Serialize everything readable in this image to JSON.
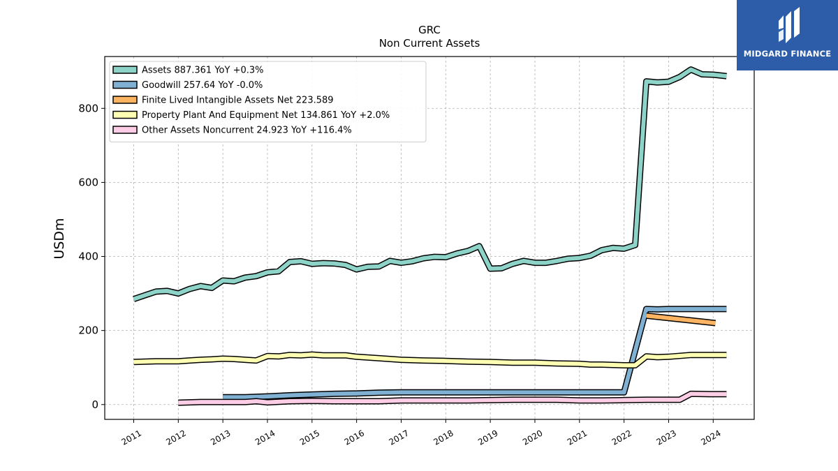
{
  "chart_data": {
    "type": "line",
    "title": "GRC",
    "subtitle": "Non Current  Assets",
    "ylabel": "USDm",
    "xlabel": "",
    "ylim": [
      -40,
      940
    ],
    "xlim": [
      2010.35,
      2024.92
    ],
    "yticks": [
      0,
      200,
      400,
      600,
      800
    ],
    "xticks": [
      "2011",
      "2012",
      "2013",
      "2014",
      "2015",
      "2016",
      "2017",
      "2018",
      "2019",
      "2020",
      "2021",
      "2022",
      "2023",
      "2024"
    ],
    "grid": true,
    "legend_position": "top-left",
    "series": [
      {
        "name": "Assets  887.361 YoY +0.3%",
        "color": "#8dd3c7",
        "x": [
          2011.0,
          2011.25,
          2011.5,
          2011.75,
          2012.0,
          2012.25,
          2012.5,
          2012.75,
          2013.0,
          2013.25,
          2013.5,
          2013.75,
          2014.0,
          2014.25,
          2014.5,
          2014.75,
          2015.0,
          2015.25,
          2015.5,
          2015.75,
          2016.0,
          2016.25,
          2016.5,
          2016.75,
          2017.0,
          2017.25,
          2017.5,
          2017.75,
          2018.0,
          2018.25,
          2018.5,
          2018.75,
          2019.0,
          2019.25,
          2019.5,
          2019.75,
          2020.0,
          2020.25,
          2020.5,
          2020.75,
          2021.0,
          2021.25,
          2021.5,
          2021.75,
          2022.0,
          2022.25,
          2022.5,
          2022.75,
          2023.0,
          2023.25,
          2023.5,
          2023.75,
          2024.0,
          2024.3
        ],
        "y": [
          285,
          295,
          305,
          307,
          300,
          312,
          320,
          315,
          335,
          333,
          343,
          347,
          357,
          360,
          385,
          387,
          380,
          382,
          381,
          377,
          365,
          372,
          373,
          388,
          383,
          387,
          395,
          399,
          398,
          408,
          415,
          428,
          367,
          368,
          380,
          388,
          383,
          383,
          388,
          394,
          396,
          402,
          417,
          423,
          421,
          431,
          873,
          870,
          872,
          885,
          905,
          892,
          891,
          887
        ]
      },
      {
        "name": "Goodwill  257.64 YoY -0.0%",
        "color": "#80b1d3",
        "x": [
          2013.0,
          2013.5,
          2014.0,
          2014.5,
          2015.0,
          2015.5,
          2016.0,
          2016.5,
          2017.0,
          2017.5,
          2018.0,
          2018.5,
          2019.0,
          2019.5,
          2020.0,
          2020.5,
          2021.0,
          2021.5,
          2022.0,
          2022.5,
          2022.75,
          2023.0,
          2023.5,
          2024.0,
          2024.3
        ],
        "y": [
          20,
          20,
          22,
          25,
          27,
          29,
          30,
          32,
          33,
          33,
          33,
          33,
          33,
          33,
          33,
          33,
          33,
          33,
          33,
          258,
          257,
          258,
          258,
          258,
          258
        ]
      },
      {
        "name": "Finite Lived Intangible Assets Net  223.589",
        "color": "#fdb462",
        "x": [
          2022.5,
          2024.05
        ],
        "y": [
          240,
          220
        ]
      },
      {
        "name": "Property Plant And Equipment Net  134.861 YoY +2.0%",
        "color": "#ffffb3",
        "x": [
          2011.0,
          2011.5,
          2012.0,
          2012.25,
          2012.5,
          2012.75,
          2013.0,
          2013.25,
          2013.5,
          2013.75,
          2014.0,
          2014.25,
          2014.5,
          2014.75,
          2015.0,
          2015.25,
          2015.5,
          2015.75,
          2016.0,
          2016.5,
          2017.0,
          2017.5,
          2018.0,
          2018.5,
          2019.0,
          2019.5,
          2020.0,
          2020.5,
          2021.0,
          2021.25,
          2021.5,
          2021.75,
          2022.0,
          2022.25,
          2022.5,
          2022.75,
          2023.0,
          2023.5,
          2024.0,
          2024.3
        ],
        "y": [
          115,
          117,
          117,
          119,
          121,
          122,
          124,
          123,
          121,
          119,
          131,
          130,
          134,
          133,
          135,
          133,
          133,
          133,
          129,
          125,
          121,
          119,
          118,
          116,
          115,
          113,
          113,
          111,
          110,
          108,
          108,
          107,
          106,
          106,
          130,
          128,
          129,
          134,
          134,
          134
        ]
      },
      {
        "name": "Other Assets Noncurrent  24.923 YoY +116.4%",
        "color": "#fccde5",
        "x": [
          2012.0,
          2012.5,
          2013.0,
          2013.5,
          2013.75,
          2014.0,
          2014.5,
          2015.0,
          2015.5,
          2016.0,
          2016.5,
          2017.0,
          2017.5,
          2018.0,
          2018.5,
          2019.0,
          2019.5,
          2020.0,
          2020.5,
          2021.0,
          2021.5,
          2022.0,
          2022.5,
          2023.0,
          2023.25,
          2023.5,
          2024.0,
          2024.3
        ],
        "y": [
          5,
          7,
          7,
          7,
          9,
          6,
          9,
          10,
          9,
          9,
          9,
          11,
          11,
          11,
          11,
          12,
          13,
          13,
          13,
          11,
          11,
          12,
          13,
          13,
          13,
          29,
          28,
          28
        ]
      }
    ]
  },
  "logo": {
    "brand": "MIDGARD FINANCE"
  }
}
